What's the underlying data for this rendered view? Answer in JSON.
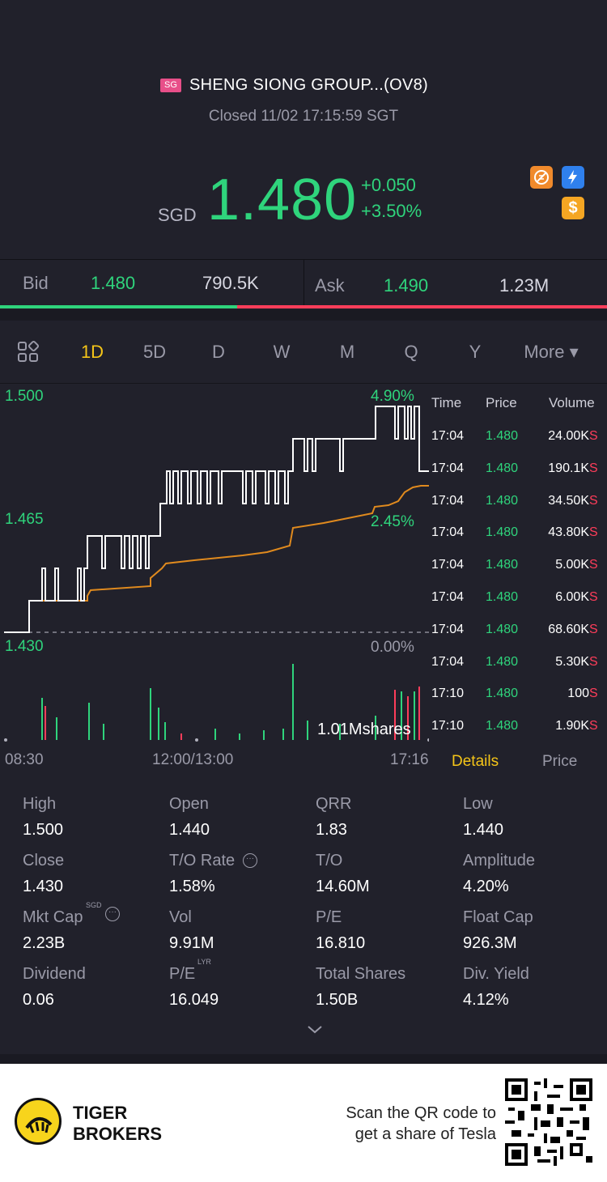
{
  "header": {
    "exchange_badge": "SG",
    "stock_name": "SHENG SIONG GROUP...(OV8)",
    "status": "Closed 11/02 17:15:59 SGT",
    "currency": "SGD",
    "price": "1.480",
    "change_abs": "+0.050",
    "change_pct": "+3.50%",
    "icons": [
      "no-short-icon",
      "flash-icon",
      "dollar-icon"
    ]
  },
  "bidask": {
    "bid_label": "Bid",
    "bid_price": "1.480",
    "bid_volume": "790.5K",
    "ask_label": "Ask",
    "ask_price": "1.490",
    "ask_volume": "1.23M",
    "bid_share": 0.39
  },
  "tabs": {
    "items": [
      "1D",
      "5D",
      "D",
      "W",
      "M",
      "Q",
      "Y",
      "More ▾"
    ],
    "active": "1D"
  },
  "chart": {
    "y_high": "1.500",
    "y_mid": "1.465",
    "y_low": "1.430",
    "pct_high": "4.90%",
    "pct_mid": "2.45%",
    "pct_low": "0.00%",
    "volume_label": "1.01Mshares",
    "x_start": "08:30",
    "x_mid": "12:00/13:00",
    "x_end": "17:16"
  },
  "chart_data": {
    "type": "line",
    "series": [],
    "ylim": [
      1.43,
      1.5
    ],
    "prev_close": 1.43,
    "x": [
      "08:30",
      "12:00/13:00",
      "17:16"
    ],
    "title": "",
    "xlabel": "",
    "ylabel": ""
  },
  "trades": {
    "headers": {
      "time": "Time",
      "price": "Price",
      "volume": "Volume"
    },
    "rows": [
      {
        "time": "17:04",
        "price": "1.480",
        "volume": "24.00K",
        "side": "S"
      },
      {
        "time": "17:04",
        "price": "1.480",
        "volume": "190.1K",
        "side": "S"
      },
      {
        "time": "17:04",
        "price": "1.480",
        "volume": "34.50K",
        "side": "S"
      },
      {
        "time": "17:04",
        "price": "1.480",
        "volume": "43.80K",
        "side": "S"
      },
      {
        "time": "17:04",
        "price": "1.480",
        "volume": "5.00K",
        "side": "S"
      },
      {
        "time": "17:04",
        "price": "1.480",
        "volume": "6.00K",
        "side": "S"
      },
      {
        "time": "17:04",
        "price": "1.480",
        "volume": "68.60K",
        "side": "S"
      },
      {
        "time": "17:04",
        "price": "1.480",
        "volume": "5.30K",
        "side": "S"
      },
      {
        "time": "17:10",
        "price": "1.480",
        "volume": "100",
        "side": "S"
      },
      {
        "time": "17:10",
        "price": "1.480",
        "volume": "1.90K",
        "side": "S"
      }
    ],
    "details_tab": "Details",
    "price_tab": "Price"
  },
  "stats": {
    "high": {
      "label": "High",
      "value": "1.500"
    },
    "open": {
      "label": "Open",
      "value": "1.440"
    },
    "qrr": {
      "label": "QRR",
      "value": "1.83"
    },
    "low": {
      "label": "Low",
      "value": "1.440"
    },
    "close": {
      "label": "Close",
      "value": "1.430"
    },
    "to_rate": {
      "label": "T/O Rate",
      "value": "1.58%"
    },
    "to": {
      "label": "T/O",
      "value": "14.60M"
    },
    "amplitude": {
      "label": "Amplitude",
      "value": "4.20%"
    },
    "mkt_cap": {
      "label": "Mkt Cap",
      "sup": "SGD",
      "value": "2.23B"
    },
    "vol": {
      "label": "Vol",
      "value": "9.91M"
    },
    "pe": {
      "label": "P/E",
      "value": "16.810"
    },
    "float_cap": {
      "label": "Float Cap",
      "value": "926.3M"
    },
    "dividend": {
      "label": "Dividend",
      "value": "0.06"
    },
    "pe_lyr": {
      "label": "P/E",
      "sup": "LYR",
      "value": "16.049"
    },
    "total_shares": {
      "label": "Total Shares",
      "value": "1.50B"
    },
    "div_yield": {
      "label": "Div. Yield",
      "value": "4.12%"
    }
  },
  "footer": {
    "brand_line1": "TIGER",
    "brand_line2": "BROKERS",
    "scan_line1": "Scan the QR code to",
    "scan_line2": "get a share of Tesla"
  },
  "colors": {
    "up": "#2fd47c",
    "down": "#ff3d5a",
    "active_tab": "#f5c518",
    "background": "#21212b",
    "avg_line": "#e08a1e"
  }
}
